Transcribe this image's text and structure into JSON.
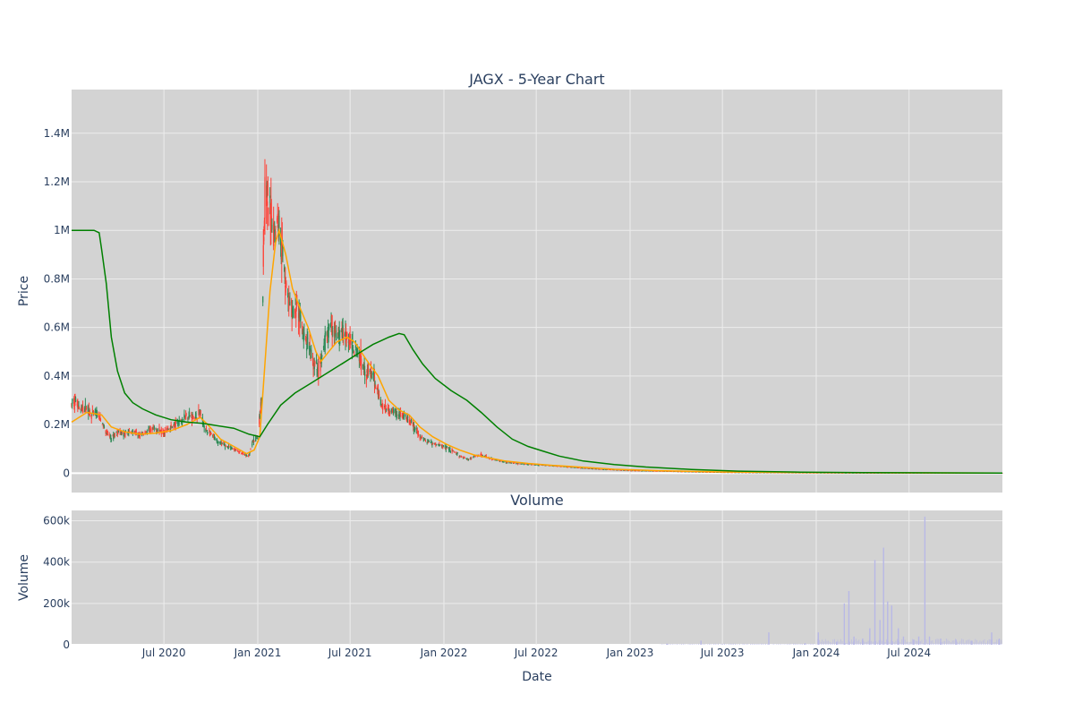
{
  "chart_data": [
    {
      "type": "candlestick",
      "title": "JAGX - 5-Year Chart",
      "ylabel": "Price",
      "ylim": [
        -80000,
        1580000
      ],
      "y_ticks": [
        {
          "value": 0,
          "label": "0"
        },
        {
          "value": 200000,
          "label": "0.2M"
        },
        {
          "value": 400000,
          "label": "0.4M"
        },
        {
          "value": 600000,
          "label": "0.6M"
        },
        {
          "value": 800000,
          "label": "0.8M"
        },
        {
          "value": 1000000,
          "label": "1M"
        },
        {
          "value": 1200000,
          "label": "1.2M"
        },
        {
          "value": 1400000,
          "label": "1.4M"
        }
      ],
      "x_range": [
        "2020-01-02",
        "2024-12-31"
      ],
      "grid": true,
      "colors": {
        "up": "#2e8b57",
        "down": "#ff4136",
        "ma_short": "#ffa500",
        "ma_long": "#008000",
        "plot_bg": "#d3d3d3",
        "grid": "#ececec"
      },
      "price_series": [
        [
          "2020-01-02",
          280000
        ],
        [
          "2020-01-10",
          300000
        ],
        [
          "2020-01-20",
          260000
        ],
        [
          "2020-02-01",
          270000
        ],
        [
          "2020-02-10",
          240000
        ],
        [
          "2020-02-20",
          250000
        ],
        [
          "2020-03-01",
          210000
        ],
        [
          "2020-03-10",
          170000
        ],
        [
          "2020-03-20",
          140000
        ],
        [
          "2020-04-01",
          170000
        ],
        [
          "2020-04-15",
          160000
        ],
        [
          "2020-05-01",
          170000
        ],
        [
          "2020-05-15",
          155000
        ],
        [
          "2020-06-01",
          175000
        ],
        [
          "2020-06-15",
          180000
        ],
        [
          "2020-07-01",
          170000
        ],
        [
          "2020-07-15",
          190000
        ],
        [
          "2020-08-01",
          210000
        ],
        [
          "2020-08-15",
          240000
        ],
        [
          "2020-09-01",
          230000
        ],
        [
          "2020-09-10",
          250000
        ],
        [
          "2020-09-20",
          180000
        ],
        [
          "2020-10-01",
          160000
        ],
        [
          "2020-10-15",
          130000
        ],
        [
          "2020-11-01",
          110000
        ],
        [
          "2020-11-15",
          100000
        ],
        [
          "2020-12-01",
          80000
        ],
        [
          "2020-12-15",
          70000
        ],
        [
          "2020-12-22",
          130000
        ],
        [
          "2021-01-01",
          150000
        ],
        [
          "2021-01-08",
          300000
        ],
        [
          "2021-01-12",
          900000
        ],
        [
          "2021-01-16",
          1200000
        ],
        [
          "2021-01-22",
          1100000
        ],
        [
          "2021-02-01",
          1000000
        ],
        [
          "2021-02-10",
          1050000
        ],
        [
          "2021-02-20",
          880000
        ],
        [
          "2021-03-01",
          720000
        ],
        [
          "2021-03-10",
          650000
        ],
        [
          "2021-03-20",
          700000
        ],
        [
          "2021-04-01",
          560000
        ],
        [
          "2021-04-10",
          520000
        ],
        [
          "2021-04-20",
          450000
        ],
        [
          "2021-05-01",
          420000
        ],
        [
          "2021-05-15",
          560000
        ],
        [
          "2021-05-25",
          620000
        ],
        [
          "2021-06-05",
          560000
        ],
        [
          "2021-06-20",
          580000
        ],
        [
          "2021-07-01",
          540000
        ],
        [
          "2021-07-10",
          520000
        ],
        [
          "2021-07-20",
          480000
        ],
        [
          "2021-08-01",
          420000
        ],
        [
          "2021-08-15",
          400000
        ],
        [
          "2021-09-01",
          280000
        ],
        [
          "2021-09-15",
          260000
        ],
        [
          "2021-10-01",
          250000
        ],
        [
          "2021-10-15",
          230000
        ],
        [
          "2021-11-01",
          200000
        ],
        [
          "2021-11-15",
          150000
        ],
        [
          "2021-12-01",
          130000
        ],
        [
          "2021-12-15",
          120000
        ],
        [
          "2022-01-01",
          110000
        ],
        [
          "2022-01-20",
          90000
        ],
        [
          "2022-02-01",
          70000
        ],
        [
          "2022-02-20",
          55000
        ],
        [
          "2022-03-01",
          70000
        ],
        [
          "2022-03-15",
          75000
        ],
        [
          "2022-04-01",
          60000
        ],
        [
          "2022-05-01",
          45000
        ],
        [
          "2022-06-01",
          38000
        ],
        [
          "2022-07-01",
          35000
        ],
        [
          "2022-08-01",
          30000
        ],
        [
          "2022-09-01",
          25000
        ],
        [
          "2022-10-01",
          20000
        ],
        [
          "2022-11-01",
          16000
        ],
        [
          "2022-12-01",
          13000
        ],
        [
          "2023-01-01",
          10000
        ],
        [
          "2023-03-01",
          8000
        ],
        [
          "2023-05-01",
          5000
        ],
        [
          "2023-07-01",
          3000
        ],
        [
          "2023-09-01",
          2000
        ],
        [
          "2023-12-01",
          1000
        ],
        [
          "2024-03-01",
          500
        ],
        [
          "2024-06-01",
          300
        ],
        [
          "2024-09-01",
          200
        ],
        [
          "2024-12-31",
          100
        ]
      ],
      "ma_short": [
        [
          "2020-01-02",
          210000
        ],
        [
          "2020-02-01",
          250000
        ],
        [
          "2020-03-01",
          240000
        ],
        [
          "2020-03-20",
          190000
        ],
        [
          "2020-04-15",
          170000
        ],
        [
          "2020-05-15",
          160000
        ],
        [
          "2020-06-15",
          165000
        ],
        [
          "2020-07-15",
          175000
        ],
        [
          "2020-08-15",
          200000
        ],
        [
          "2020-09-10",
          230000
        ],
        [
          "2020-09-25",
          200000
        ],
        [
          "2020-10-20",
          140000
        ],
        [
          "2020-11-15",
          110000
        ],
        [
          "2020-12-10",
          80000
        ],
        [
          "2020-12-25",
          95000
        ],
        [
          "2021-01-05",
          150000
        ],
        [
          "2021-01-15",
          450000
        ],
        [
          "2021-01-25",
          750000
        ],
        [
          "2021-02-05",
          950000
        ],
        [
          "2021-02-12",
          1000000
        ],
        [
          "2021-02-25",
          900000
        ],
        [
          "2021-03-10",
          760000
        ],
        [
          "2021-03-25",
          680000
        ],
        [
          "2021-04-10",
          600000
        ],
        [
          "2021-04-25",
          500000
        ],
        [
          "2021-05-05",
          460000
        ],
        [
          "2021-05-20",
          500000
        ],
        [
          "2021-06-05",
          540000
        ],
        [
          "2021-06-25",
          560000
        ],
        [
          "2021-07-10",
          540000
        ],
        [
          "2021-08-01",
          470000
        ],
        [
          "2021-08-25",
          400000
        ],
        [
          "2021-09-15",
          300000
        ],
        [
          "2021-10-05",
          260000
        ],
        [
          "2021-10-25",
          240000
        ],
        [
          "2021-11-15",
          190000
        ],
        [
          "2021-12-10",
          150000
        ],
        [
          "2022-01-05",
          120000
        ],
        [
          "2022-02-01",
          95000
        ],
        [
          "2022-03-01",
          75000
        ],
        [
          "2022-04-01",
          62000
        ],
        [
          "2022-05-01",
          50000
        ],
        [
          "2022-06-15",
          40000
        ],
        [
          "2022-08-01",
          32000
        ],
        [
          "2022-10-01",
          24000
        ],
        [
          "2022-12-01",
          16000
        ],
        [
          "2023-03-01",
          10000
        ],
        [
          "2023-07-01",
          5000
        ],
        [
          "2023-12-01",
          2500
        ],
        [
          "2024-06-01",
          1000
        ],
        [
          "2024-12-31",
          500
        ]
      ],
      "ma_long": [
        [
          "2020-01-02",
          1000000
        ],
        [
          "2020-02-15",
          1000000
        ],
        [
          "2020-02-25",
          990000
        ],
        [
          "2020-03-01",
          920000
        ],
        [
          "2020-03-10",
          780000
        ],
        [
          "2020-03-20",
          560000
        ],
        [
          "2020-04-01",
          420000
        ],
        [
          "2020-04-15",
          330000
        ],
        [
          "2020-05-01",
          290000
        ],
        [
          "2020-05-20",
          265000
        ],
        [
          "2020-06-15",
          240000
        ],
        [
          "2020-07-15",
          220000
        ],
        [
          "2020-08-15",
          210000
        ],
        [
          "2020-09-15",
          205000
        ],
        [
          "2020-10-15",
          195000
        ],
        [
          "2020-11-15",
          185000
        ],
        [
          "2020-12-15",
          160000
        ],
        [
          "2021-01-05",
          150000
        ],
        [
          "2021-01-20",
          200000
        ],
        [
          "2021-02-15",
          280000
        ],
        [
          "2021-03-15",
          330000
        ],
        [
          "2021-04-15",
          370000
        ],
        [
          "2021-05-15",
          410000
        ],
        [
          "2021-06-15",
          450000
        ],
        [
          "2021-07-15",
          490000
        ],
        [
          "2021-08-15",
          530000
        ],
        [
          "2021-09-15",
          560000
        ],
        [
          "2021-10-05",
          575000
        ],
        [
          "2021-10-15",
          570000
        ],
        [
          "2021-11-01",
          510000
        ],
        [
          "2021-11-20",
          450000
        ],
        [
          "2021-12-15",
          390000
        ],
        [
          "2022-01-15",
          340000
        ],
        [
          "2022-02-15",
          300000
        ],
        [
          "2022-03-15",
          250000
        ],
        [
          "2022-04-15",
          190000
        ],
        [
          "2022-05-15",
          140000
        ],
        [
          "2022-06-15",
          110000
        ],
        [
          "2022-07-15",
          90000
        ],
        [
          "2022-08-15",
          70000
        ],
        [
          "2022-10-01",
          50000
        ],
        [
          "2022-12-01",
          35000
        ],
        [
          "2023-02-01",
          25000
        ],
        [
          "2023-05-01",
          15000
        ],
        [
          "2023-08-01",
          8000
        ],
        [
          "2023-12-01",
          4000
        ],
        [
          "2024-04-01",
          2000
        ],
        [
          "2024-12-31",
          500
        ]
      ]
    },
    {
      "type": "bar",
      "title": "Volume",
      "xlabel": "Date",
      "ylabel": "Volume",
      "ylim": [
        0,
        650000
      ],
      "y_ticks": [
        {
          "value": 0,
          "label": "0"
        },
        {
          "value": 200000,
          "label": "200k"
        },
        {
          "value": 400000,
          "label": "400k"
        },
        {
          "value": 600000,
          "label": "600k"
        }
      ],
      "x_ticks": [
        {
          "value": "2020-07-01",
          "label": "Jul 2020"
        },
        {
          "value": "2021-01-01",
          "label": "Jan 2021"
        },
        {
          "value": "2021-07-01",
          "label": "Jul 2021"
        },
        {
          "value": "2022-01-01",
          "label": "Jan 2022"
        },
        {
          "value": "2022-07-01",
          "label": "Jul 2022"
        },
        {
          "value": "2023-01-01",
          "label": "Jan 2023"
        },
        {
          "value": "2023-07-01",
          "label": "Jul 2023"
        },
        {
          "value": "2024-01-01",
          "label": "Jan 2024"
        },
        {
          "value": "2024-07-01",
          "label": "Jul 2024"
        }
      ],
      "bar_color": "#b8b8e6",
      "values": [
        [
          "2023-03-15",
          5000
        ],
        [
          "2023-05-20",
          20000
        ],
        [
          "2023-09-30",
          60000
        ],
        [
          "2023-12-10",
          8000
        ],
        [
          "2024-01-05",
          60000
        ],
        [
          "2024-02-10",
          15000
        ],
        [
          "2024-02-25",
          200000
        ],
        [
          "2024-03-05",
          260000
        ],
        [
          "2024-03-15",
          40000
        ],
        [
          "2024-04-01",
          30000
        ],
        [
          "2024-04-15",
          80000
        ],
        [
          "2024-04-25",
          410000
        ],
        [
          "2024-05-05",
          120000
        ],
        [
          "2024-05-12",
          470000
        ],
        [
          "2024-05-20",
          210000
        ],
        [
          "2024-05-28",
          190000
        ],
        [
          "2024-06-10",
          80000
        ],
        [
          "2024-06-20",
          40000
        ],
        [
          "2024-07-10",
          25000
        ],
        [
          "2024-07-20",
          40000
        ],
        [
          "2024-08-01",
          620000
        ],
        [
          "2024-08-10",
          40000
        ],
        [
          "2024-09-01",
          30000
        ],
        [
          "2024-10-01",
          25000
        ],
        [
          "2024-11-01",
          20000
        ],
        [
          "2024-12-10",
          60000
        ],
        [
          "2024-12-25",
          30000
        ]
      ]
    }
  ]
}
